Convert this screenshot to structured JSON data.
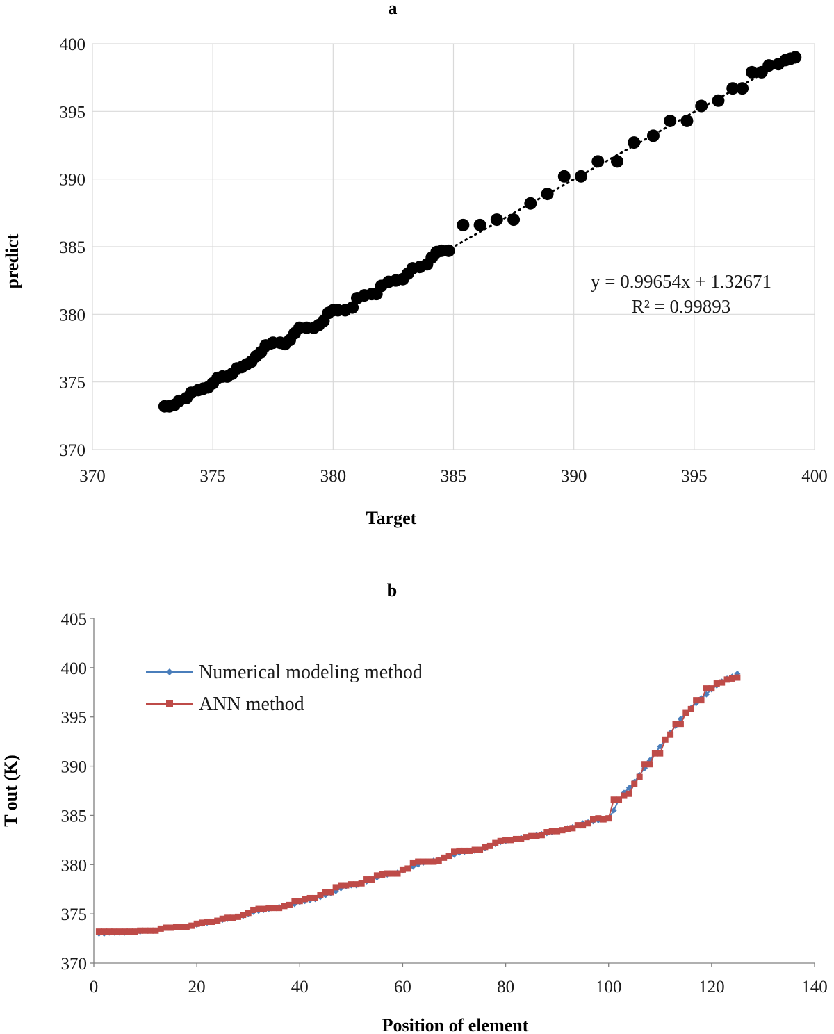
{
  "chart_data": [
    {
      "panel": "a",
      "type": "scatter",
      "title": "a",
      "xlabel": "Target",
      "ylabel": "predict",
      "xlim": [
        370,
        400
      ],
      "ylim": [
        370,
        400
      ],
      "x_ticks": [
        "370",
        "375",
        "380",
        "385",
        "390",
        "395",
        "400"
      ],
      "y_ticks": [
        "370",
        "375",
        "380",
        "385",
        "390",
        "395",
        "400"
      ],
      "grid": true,
      "marker_color": "#000000",
      "trendline": {
        "style": "dotted",
        "slope": 0.99654,
        "intercept": 1.32671
      },
      "annotations": [
        "y = 0.99654x + 1.32671",
        "R² = 0.99893"
      ],
      "points": [
        [
          373.0,
          373.2
        ],
        [
          373.2,
          373.2
        ],
        [
          373.4,
          373.3
        ],
        [
          373.6,
          373.6
        ],
        [
          373.9,
          373.8
        ],
        [
          374.1,
          374.2
        ],
        [
          374.4,
          374.4
        ],
        [
          374.6,
          374.5
        ],
        [
          374.8,
          374.6
        ],
        [
          375.0,
          374.9
        ],
        [
          375.2,
          375.3
        ],
        [
          375.4,
          375.4
        ],
        [
          375.6,
          375.4
        ],
        [
          375.8,
          375.6
        ],
        [
          376.0,
          376.0
        ],
        [
          376.2,
          376.1
        ],
        [
          376.4,
          376.3
        ],
        [
          376.6,
          376.5
        ],
        [
          376.8,
          376.9
        ],
        [
          377.0,
          377.2
        ],
        [
          377.2,
          377.7
        ],
        [
          377.5,
          377.9
        ],
        [
          377.8,
          377.9
        ],
        [
          378.0,
          377.8
        ],
        [
          378.2,
          378.1
        ],
        [
          378.4,
          378.6
        ],
        [
          378.6,
          379.0
        ],
        [
          378.9,
          379.0
        ],
        [
          379.2,
          379.0
        ],
        [
          379.4,
          379.2
        ],
        [
          379.6,
          379.5
        ],
        [
          379.8,
          380.1
        ],
        [
          380.0,
          380.3
        ],
        [
          380.2,
          380.3
        ],
        [
          380.5,
          380.3
        ],
        [
          380.8,
          380.5
        ],
        [
          381.0,
          381.2
        ],
        [
          381.3,
          381.4
        ],
        [
          381.6,
          381.5
        ],
        [
          381.8,
          381.5
        ],
        [
          382.0,
          382.1
        ],
        [
          382.3,
          382.4
        ],
        [
          382.6,
          382.5
        ],
        [
          382.9,
          382.6
        ],
        [
          383.1,
          383.0
        ],
        [
          383.3,
          383.4
        ],
        [
          383.6,
          383.5
        ],
        [
          383.9,
          383.7
        ],
        [
          384.1,
          384.2
        ],
        [
          384.3,
          384.6
        ],
        [
          384.5,
          384.7
        ],
        [
          384.8,
          384.7
        ],
        [
          385.4,
          386.6
        ],
        [
          386.1,
          386.6
        ],
        [
          386.8,
          387.0
        ],
        [
          387.5,
          387.0
        ],
        [
          388.2,
          388.2
        ],
        [
          388.9,
          388.9
        ],
        [
          389.6,
          390.2
        ],
        [
          390.3,
          390.2
        ],
        [
          391.0,
          391.3
        ],
        [
          391.8,
          391.3
        ],
        [
          392.5,
          392.7
        ],
        [
          393.3,
          393.2
        ],
        [
          394.0,
          394.3
        ],
        [
          394.7,
          394.3
        ],
        [
          395.3,
          395.4
        ],
        [
          396.0,
          395.8
        ],
        [
          396.6,
          396.7
        ],
        [
          397.0,
          396.7
        ],
        [
          397.4,
          397.9
        ],
        [
          397.8,
          397.9
        ],
        [
          398.1,
          398.4
        ],
        [
          398.5,
          398.5
        ],
        [
          398.8,
          398.8
        ],
        [
          399.0,
          398.9
        ],
        [
          399.2,
          399.0
        ]
      ]
    },
    {
      "panel": "b",
      "type": "line",
      "title": "b",
      "xlabel": "Position of element",
      "ylabel": "T out (K)",
      "xlim": [
        0,
        140
      ],
      "ylim": [
        370,
        405
      ],
      "x_ticks": [
        "0",
        "20",
        "40",
        "60",
        "80",
        "100",
        "120",
        "140"
      ],
      "y_ticks": [
        "370",
        "375",
        "380",
        "385",
        "390",
        "395",
        "400",
        "405"
      ],
      "grid": false,
      "legend_position": "top-left",
      "x": [
        1,
        2,
        3,
        4,
        5,
        6,
        7,
        8,
        9,
        10,
        11,
        12,
        13,
        14,
        15,
        16,
        17,
        18,
        19,
        20,
        21,
        22,
        23,
        24,
        25,
        26,
        27,
        28,
        29,
        30,
        31,
        32,
        33,
        34,
        35,
        36,
        37,
        38,
        39,
        40,
        41,
        42,
        43,
        44,
        45,
        46,
        47,
        48,
        49,
        50,
        51,
        52,
        53,
        54,
        55,
        56,
        57,
        58,
        59,
        60,
        61,
        62,
        63,
        64,
        65,
        66,
        67,
        68,
        69,
        70,
        71,
        72,
        73,
        74,
        75,
        76,
        77,
        78,
        79,
        80,
        81,
        82,
        83,
        84,
        85,
        86,
        87,
        88,
        89,
        90,
        91,
        92,
        93,
        94,
        95,
        96,
        97,
        98,
        99,
        100,
        101,
        102,
        103,
        104,
        105,
        106,
        107,
        108,
        109,
        110,
        111,
        112,
        113,
        114,
        115,
        116,
        117,
        118,
        119,
        120,
        121,
        122,
        123,
        124,
        125
      ],
      "series": [
        {
          "name": "Numerical modeling method",
          "color": "#4a7ebb",
          "marker": "diamond",
          "values": [
            373.0,
            373.0,
            373.1,
            373.1,
            373.1,
            373.1,
            373.2,
            373.2,
            373.2,
            373.3,
            373.3,
            373.3,
            373.5,
            373.6,
            373.6,
            373.7,
            373.7,
            373.7,
            373.8,
            373.9,
            374.0,
            374.1,
            374.2,
            374.3,
            374.4,
            374.5,
            374.6,
            374.7,
            374.8,
            375.0,
            375.2,
            375.3,
            375.4,
            375.5,
            375.6,
            375.7,
            375.8,
            375.9,
            376.0,
            376.2,
            376.3,
            376.4,
            376.5,
            376.7,
            376.9,
            377.1,
            377.3,
            377.6,
            377.8,
            377.9,
            377.9,
            378.1,
            378.3,
            378.5,
            378.7,
            378.9,
            379.0,
            379.1,
            379.2,
            379.4,
            379.6,
            379.8,
            380.0,
            380.2,
            380.3,
            380.4,
            380.5,
            380.7,
            380.9,
            381.0,
            381.2,
            381.3,
            381.4,
            381.4,
            381.5,
            381.7,
            381.9,
            382.1,
            382.3,
            382.4,
            382.5,
            382.6,
            382.7,
            382.8,
            382.9,
            383.0,
            383.1,
            383.2,
            383.3,
            383.4,
            383.5,
            383.7,
            383.8,
            384.0,
            384.2,
            384.3,
            384.4,
            384.5,
            384.6,
            384.7,
            385.5,
            386.6,
            387.3,
            387.8,
            388.4,
            389.1,
            389.8,
            390.6,
            391.3,
            392.0,
            392.7,
            393.4,
            394.1,
            394.8,
            395.4,
            395.9,
            396.4,
            396.9,
            397.3,
            397.8,
            398.2,
            398.6,
            398.9,
            399.1,
            399.4
          ]
        },
        {
          "name": "ANN method",
          "color": "#be4b48",
          "marker": "square",
          "values": [
            373.2,
            373.2,
            373.2,
            373.2,
            373.2,
            373.2,
            373.2,
            373.2,
            373.3,
            373.3,
            373.3,
            373.3,
            373.5,
            373.6,
            373.6,
            373.7,
            373.7,
            373.7,
            373.8,
            374.0,
            374.1,
            374.2,
            374.2,
            374.3,
            374.5,
            374.6,
            374.6,
            374.7,
            374.9,
            375.1,
            375.4,
            375.5,
            375.5,
            375.6,
            375.6,
            375.6,
            375.8,
            375.9,
            376.3,
            376.3,
            376.5,
            376.6,
            376.6,
            376.9,
            377.2,
            377.2,
            377.7,
            377.9,
            377.9,
            378.0,
            378.0,
            378.1,
            378.5,
            378.5,
            378.9,
            379.0,
            379.1,
            379.1,
            379.1,
            379.5,
            379.6,
            380.2,
            380.3,
            380.3,
            380.3,
            380.3,
            380.4,
            380.7,
            380.9,
            381.3,
            381.4,
            381.4,
            381.4,
            381.5,
            381.5,
            381.8,
            381.9,
            382.2,
            382.4,
            382.5,
            382.5,
            382.6,
            382.6,
            382.8,
            382.9,
            382.9,
            383.0,
            383.3,
            383.4,
            383.4,
            383.5,
            383.6,
            383.7,
            384.0,
            384.0,
            384.2,
            384.6,
            384.7,
            384.6,
            384.7,
            386.6,
            386.6,
            387.0,
            387.2,
            388.2,
            388.9,
            390.2,
            390.2,
            391.3,
            391.3,
            392.7,
            393.2,
            394.3,
            394.3,
            395.4,
            395.8,
            396.7,
            396.7,
            397.9,
            397.9,
            398.4,
            398.5,
            398.8,
            398.9,
            399.0
          ]
        }
      ]
    }
  ]
}
